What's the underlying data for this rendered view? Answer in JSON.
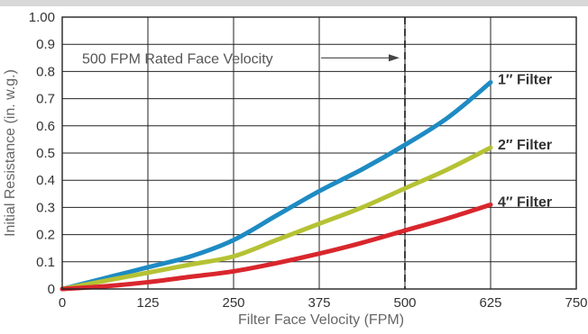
{
  "chart_data": {
    "type": "line",
    "title": "",
    "xlabel": "Filter Face Velocity (FPM)",
    "ylabel": "Initial Resistance (in. w.g.)",
    "xlim": [
      0,
      750
    ],
    "ylim": [
      0,
      1.0
    ],
    "x_ticks": [
      0,
      125,
      250,
      375,
      500,
      625,
      750
    ],
    "x_tick_labels": [
      "0",
      "125",
      "250",
      "375",
      "500",
      "625",
      "750"
    ],
    "y_ticks": [
      0,
      0.1,
      0.2,
      0.3,
      0.4,
      0.5,
      0.6,
      0.7,
      0.8,
      0.9,
      1.0
    ],
    "y_tick_labels": [
      "0",
      "0.1",
      "0.2",
      "0.3",
      "0.4",
      "0.5",
      "0.6",
      "0.7",
      "0.8",
      "0.9",
      "1.00"
    ],
    "grid": true,
    "series": [
      {
        "name": "1″ Filter",
        "color": "#1e8bc3",
        "x": [
          0,
          62.5,
          125,
          187.5,
          250,
          312.5,
          375,
          437.5,
          500,
          562.5,
          625
        ],
        "y": [
          0,
          0.04,
          0.08,
          0.12,
          0.18,
          0.27,
          0.36,
          0.44,
          0.53,
          0.63,
          0.76
        ]
      },
      {
        "name": "2″ Filter",
        "color": "#b5c234",
        "x": [
          0,
          62.5,
          125,
          187.5,
          250,
          312.5,
          375,
          437.5,
          500,
          562.5,
          625
        ],
        "y": [
          0,
          0.03,
          0.06,
          0.09,
          0.12,
          0.18,
          0.24,
          0.3,
          0.37,
          0.44,
          0.52
        ]
      },
      {
        "name": "4″ Filter",
        "color": "#d9262d",
        "x": [
          0,
          62.5,
          125,
          187.5,
          250,
          312.5,
          375,
          437.5,
          500,
          562.5,
          625
        ],
        "y": [
          0,
          0.01,
          0.025,
          0.045,
          0.065,
          0.095,
          0.13,
          0.17,
          0.215,
          0.26,
          0.31
        ]
      }
    ],
    "reference_line": {
      "x": 500,
      "style": "dashed",
      "color": "#111111"
    },
    "annotation": {
      "text": "500 FPM Rated Face Velocity",
      "arrow_to_x": 500,
      "y": 0.85
    }
  }
}
